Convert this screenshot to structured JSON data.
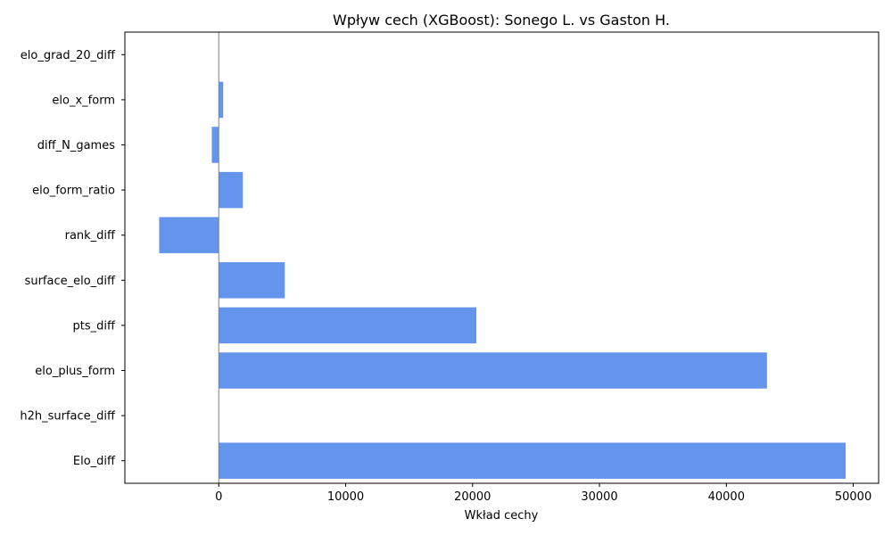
{
  "chart_data": {
    "type": "bar",
    "orientation": "horizontal",
    "title": "Wpływ cech (XGBoost): Sonego L. vs Gaston H.",
    "xlabel": "Wkład cechy",
    "ylabel": "",
    "categories": [
      "Elo_diff",
      "h2h_surface_diff",
      "elo_plus_form",
      "pts_diff",
      "surface_elo_diff",
      "rank_diff",
      "elo_form_ratio",
      "diff_N_games",
      "elo_x_form",
      "elo_grad_20_diff"
    ],
    "values": [
      49400,
      0,
      43200,
      20300,
      5200,
      -4700,
      1900,
      -550,
      350,
      0
    ],
    "xlim": [
      -7400,
      52000
    ],
    "xticks": [
      0,
      10000,
      20000,
      30000,
      40000,
      50000
    ],
    "bar_color": "#6495ed",
    "zero_line_color": "#808080",
    "grid": false
  }
}
